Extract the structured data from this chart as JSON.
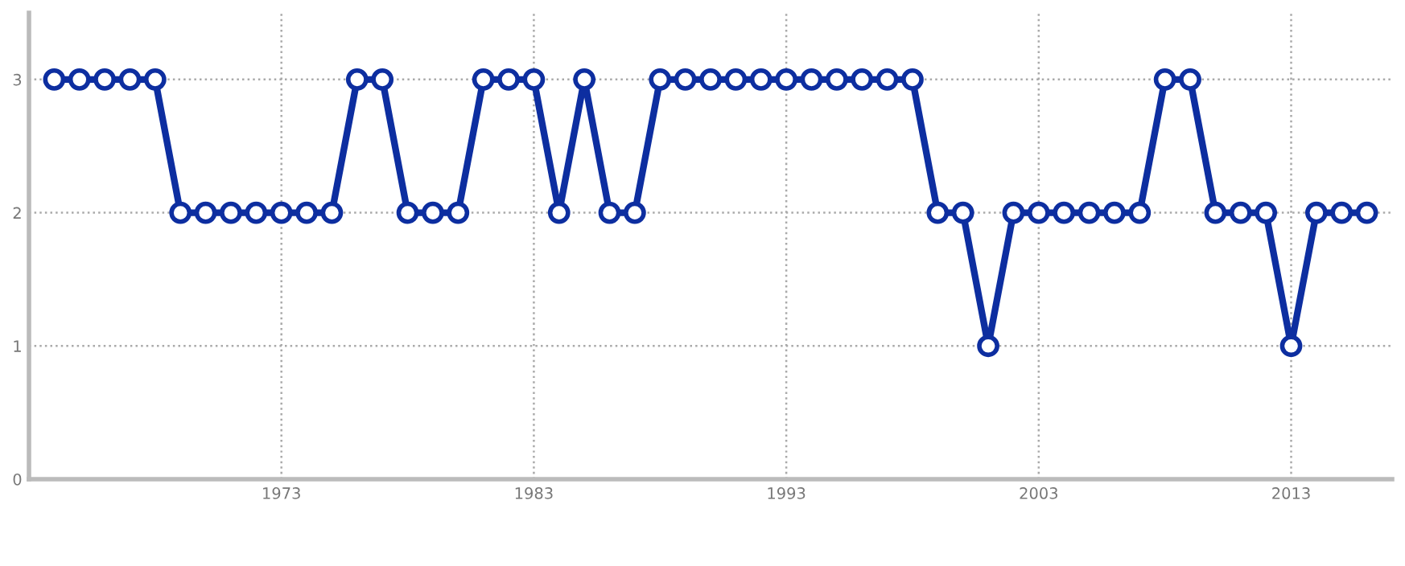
{
  "chart_data": {
    "type": "line",
    "x": [
      1964,
      1965,
      1966,
      1967,
      1968,
      1969,
      1970,
      1971,
      1972,
      1973,
      1974,
      1975,
      1976,
      1977,
      1978,
      1979,
      1980,
      1981,
      1982,
      1983,
      1984,
      1985,
      1986,
      1987,
      1988,
      1989,
      1990,
      1991,
      1992,
      1993,
      1994,
      1995,
      1996,
      1997,
      1998,
      1999,
      2000,
      2001,
      2002,
      2003,
      2004,
      2005,
      2006,
      2007,
      2008,
      2009,
      2010,
      2011,
      2012,
      2013,
      2014,
      2015,
      2016
    ],
    "series": [
      {
        "color": "#0d2ea0",
        "values": [
          3,
          3,
          3,
          3,
          3,
          2,
          2,
          2,
          2,
          2,
          2,
          2,
          3,
          3,
          2,
          2,
          2,
          3,
          3,
          3,
          2,
          3,
          2,
          2,
          3,
          3,
          3,
          3,
          3,
          3,
          3,
          3,
          3,
          3,
          3,
          2,
          2,
          1,
          2,
          2,
          2,
          2,
          2,
          2,
          3,
          3,
          2,
          2,
          2,
          1,
          2,
          2,
          2
        ]
      }
    ],
    "xlim": [
      1963,
      2017
    ],
    "xticks": [
      1973,
      1983,
      1993,
      2003,
      2013
    ],
    "ylim": [
      0,
      3.5
    ],
    "yticks": [
      0,
      1,
      2,
      3
    ],
    "grid": true,
    "marker": "circle",
    "line_style": "solid"
  }
}
